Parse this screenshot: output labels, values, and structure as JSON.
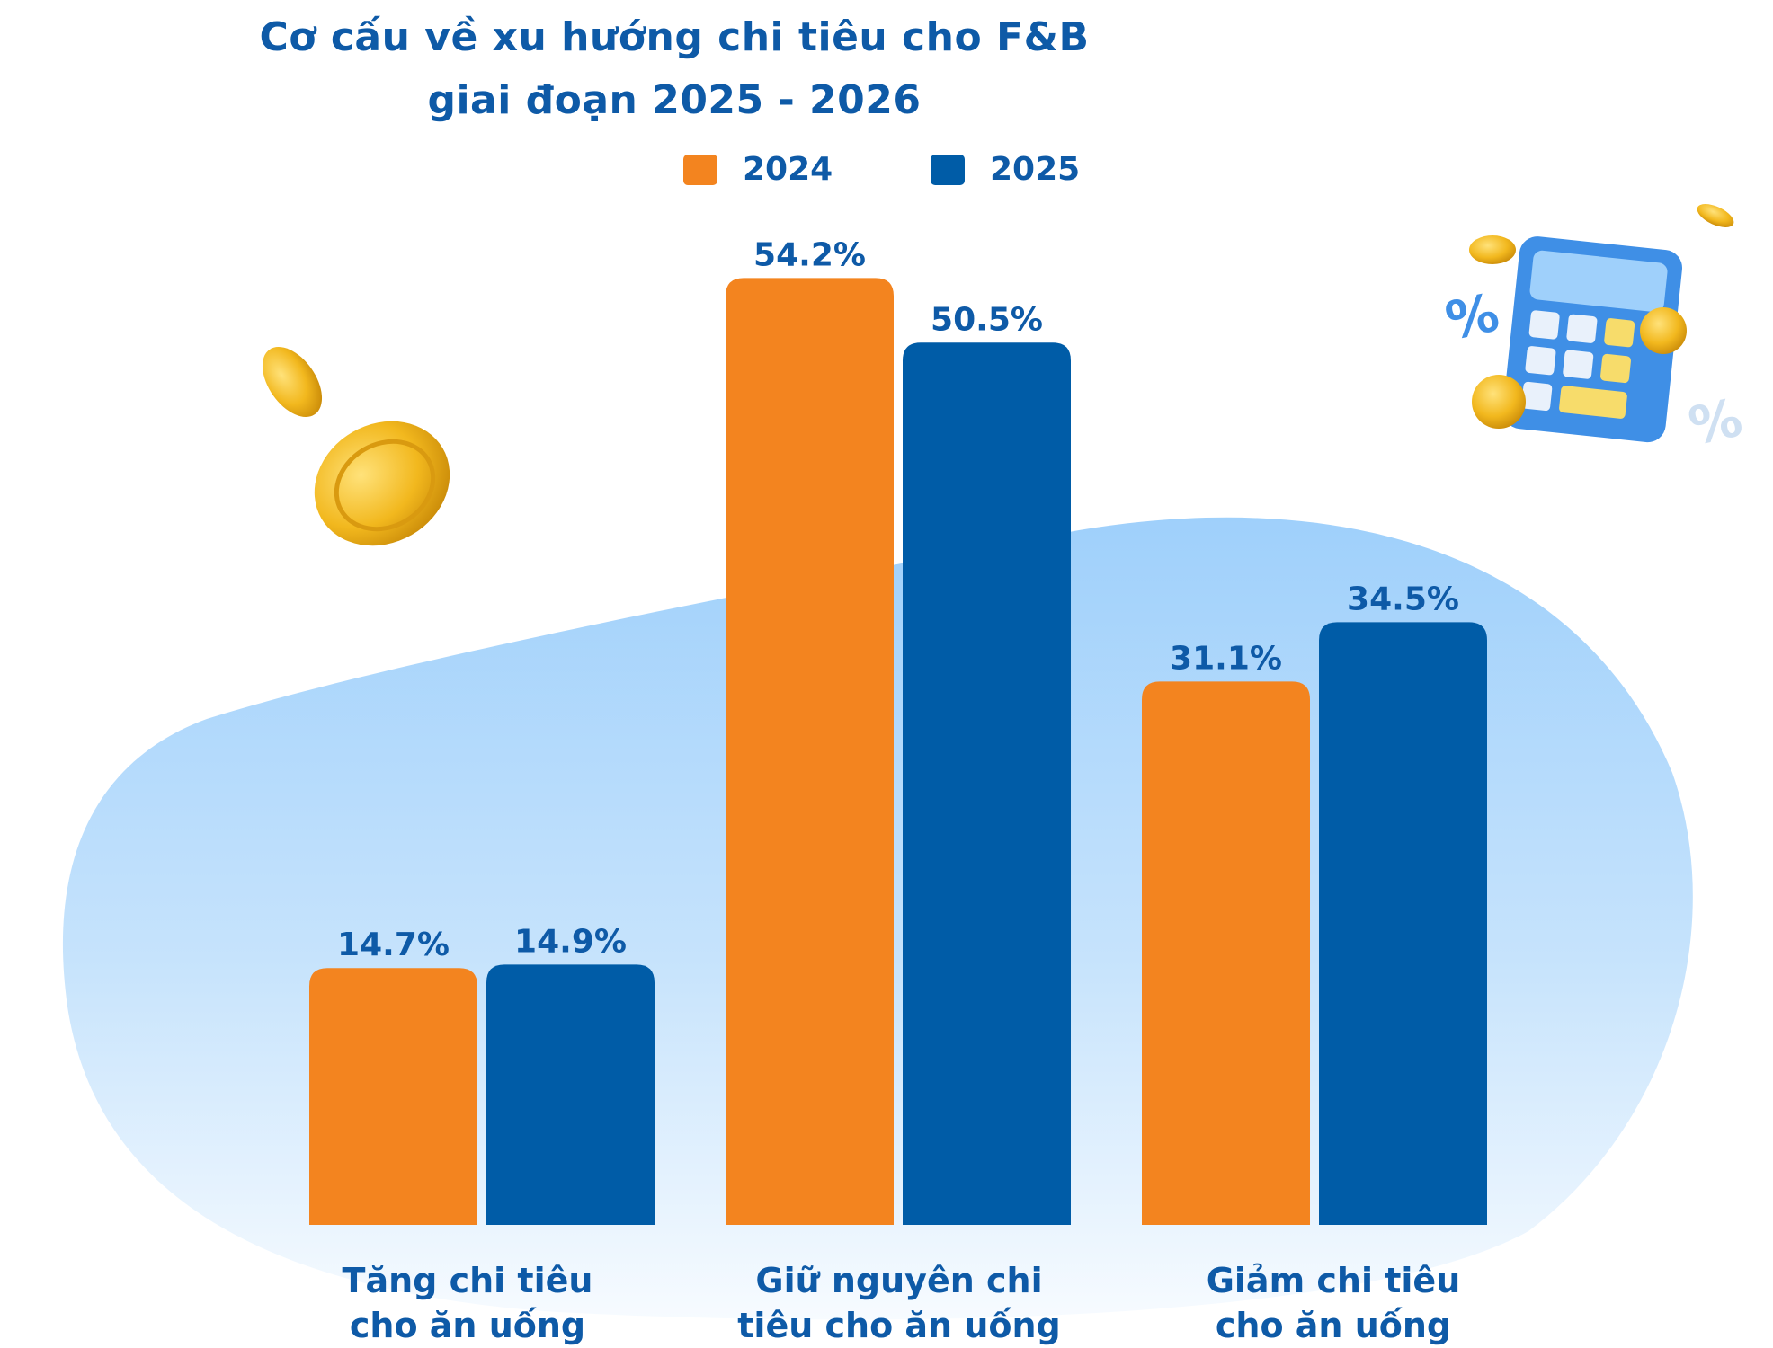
{
  "title_line1": "Cơ cấu về xu hướng chi tiêu cho F&B",
  "title_line2": "giai đoạn 2025 - 2026",
  "colors": {
    "orange": "#f3841f",
    "blue": "#005ca7",
    "text": "#0e5aa7"
  },
  "decorations": [
    "coin-icon",
    "calculator-icon",
    "percent-icon"
  ],
  "chart_data": {
    "type": "bar",
    "title": "Cơ cấu về xu hướng chi tiêu cho F&B giai đoạn 2025 - 2026",
    "categories": [
      [
        "Tăng chi tiêu",
        "cho ăn uống"
      ],
      [
        "Giữ nguyên chi",
        "tiêu cho ăn uống"
      ],
      [
        "Giảm chi tiêu",
        "cho ăn uống"
      ]
    ],
    "series": [
      {
        "name": "2024",
        "color": "#f3841f",
        "values": [
          14.7,
          54.2,
          31.1
        ],
        "labels": [
          "14.7%",
          "54.2%",
          "31.1%"
        ]
      },
      {
        "name": "2025",
        "color": "#005ca7",
        "values": [
          14.9,
          50.5,
          34.5
        ],
        "labels": [
          "14.9%",
          "50.5%",
          "34.5%"
        ]
      }
    ],
    "ylim": [
      0,
      60
    ],
    "grid": false,
    "legend": "top-center"
  }
}
